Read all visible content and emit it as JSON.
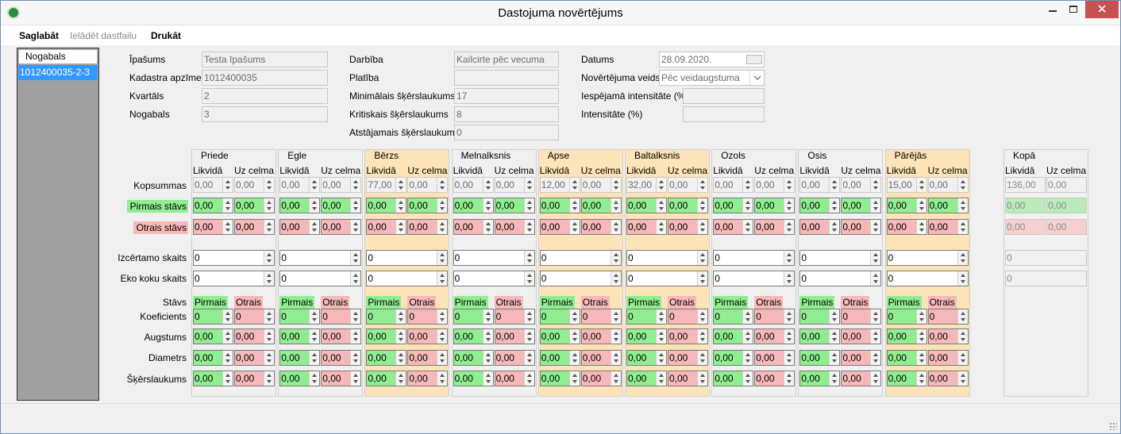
{
  "window": {
    "title": "Dastojuma novērtējums"
  },
  "menu": [
    "Saglabāt",
    "Ielādēt dastfailu",
    "Drukāt"
  ],
  "sidebar": {
    "header": "Nogabals",
    "items": [
      "1012400035-2-3"
    ]
  },
  "form": {
    "columns": [
      [
        {
          "label": "Īpašums",
          "value": "Testa īpašums"
        },
        {
          "label": "Kadastra apzīme",
          "value": "1012400035"
        },
        {
          "label": "Kvartāls",
          "value": "2"
        },
        {
          "label": "Nogabals",
          "value": "3"
        }
      ],
      [
        {
          "label": "Darbība",
          "value": "Kailcirte pēc vecuma"
        },
        {
          "label": "Platība"
        },
        {
          "label": "Minimālais šķērslaukums",
          "value": "17"
        },
        {
          "label": "Kritiskais šķērslaukums",
          "value": "8"
        },
        {
          "label": "Atstājamais šķērslaukums",
          "value": "0"
        }
      ],
      [
        {
          "label": "Datums",
          "value": "28.09.2020."
        },
        {
          "label": "Novērtējuma veids",
          "value": "Pēc veidaugstuma"
        },
        {
          "label": "Iespējamā intensitāte (%)"
        },
        {
          "label": "Intensitāte (%)"
        }
      ]
    ]
  },
  "grid": {
    "col_labels": [
      "Likvidā",
      "Uz celma"
    ],
    "layer_labels": [
      "Pirmais",
      "Otrais"
    ],
    "row_labels": [
      "Kopsummas",
      "Pirmais stāvs",
      "Otrais stāvs",
      "Izcērtamo skaits",
      "Eko koku skaits",
      "Stāvs",
      "Koeficients",
      "Augstums",
      "Diametrs",
      "Šķērslaukums"
    ],
    "highlight_color": "#fde3b8",
    "groups": [
      {
        "name": "Priede",
        "highlight": false,
        "kopsummas": [
          "0,00",
          "0,00"
        ],
        "pirmais": [
          "0,00",
          "0,00"
        ],
        "otrais": [
          "0,00",
          "0,00"
        ],
        "izcertamo": "0",
        "eko": "0",
        "koeficients": [
          "0",
          "0"
        ],
        "augstums": [
          "0,00",
          "0,00"
        ],
        "diametrs": [
          "0,00",
          "0,00"
        ],
        "skerslaukums": [
          "0,00",
          "0,00"
        ]
      },
      {
        "name": "Egle",
        "highlight": false,
        "kopsummas": [
          "0,00",
          "0,00"
        ],
        "pirmais": [
          "0,00",
          "0,00"
        ],
        "otrais": [
          "0,00",
          "0,00"
        ],
        "izcertamo": "0",
        "eko": "0",
        "koeficients": [
          "0",
          "0"
        ],
        "augstums": [
          "0,00",
          "0,00"
        ],
        "diametrs": [
          "0,00",
          "0,00"
        ],
        "skerslaukums": [
          "0,00",
          "0,00"
        ]
      },
      {
        "name": "Bērzs",
        "highlight": true,
        "kopsummas": [
          "77,00",
          "0,00"
        ],
        "pirmais": [
          "0,00",
          "0,00"
        ],
        "otrais": [
          "0,00",
          "0,00"
        ],
        "izcertamo": "0",
        "eko": "0",
        "koeficients": [
          "0",
          "0"
        ],
        "augstums": [
          "0,00",
          "0,00"
        ],
        "diametrs": [
          "0,00",
          "0,00"
        ],
        "skerslaukums": [
          "0,00",
          "0,00"
        ]
      },
      {
        "name": "Melnalksnis",
        "highlight": false,
        "kopsummas": [
          "0,00",
          "0,00"
        ],
        "pirmais": [
          "0,00",
          "0,00"
        ],
        "otrais": [
          "0,00",
          "0,00"
        ],
        "izcertamo": "0",
        "eko": "0",
        "koeficients": [
          "0",
          "0"
        ],
        "augstums": [
          "0,00",
          "0,00"
        ],
        "diametrs": [
          "0,00",
          "0,00"
        ],
        "skerslaukums": [
          "0,00",
          "0,00"
        ]
      },
      {
        "name": "Apse",
        "highlight": true,
        "kopsummas": [
          "12,00",
          "0,00"
        ],
        "pirmais": [
          "0,00",
          "0,00"
        ],
        "otrais": [
          "0,00",
          "0,00"
        ],
        "izcertamo": "0",
        "eko": "0",
        "koeficients": [
          "0",
          "0"
        ],
        "augstums": [
          "0,00",
          "0,00"
        ],
        "diametrs": [
          "0,00",
          "0,00"
        ],
        "skerslaukums": [
          "0,00",
          "0,00"
        ]
      },
      {
        "name": "Baltalksnis",
        "highlight": true,
        "kopsummas": [
          "32,00",
          "0,00"
        ],
        "pirmais": [
          "0,00",
          "0,00"
        ],
        "otrais": [
          "0,00",
          "0,00"
        ],
        "izcertamo": "0",
        "eko": "0",
        "koeficients": [
          "0",
          "0"
        ],
        "augstums": [
          "0,00",
          "0,00"
        ],
        "diametrs": [
          "0,00",
          "0,00"
        ],
        "skerslaukums": [
          "0,00",
          "0,00"
        ]
      },
      {
        "name": "Ozols",
        "highlight": false,
        "kopsummas": [
          "0,00",
          "0,00"
        ],
        "pirmais": [
          "0,00",
          "0,00"
        ],
        "otrais": [
          "0,00",
          "0,00"
        ],
        "izcertamo": "0",
        "eko": "0",
        "koeficients": [
          "0",
          "0"
        ],
        "augstums": [
          "0,00",
          "0,00"
        ],
        "diametrs": [
          "0,00",
          "0,00"
        ],
        "skerslaukums": [
          "0,00",
          "0,00"
        ]
      },
      {
        "name": "Osis",
        "highlight": false,
        "kopsummas": [
          "0,00",
          "0,00"
        ],
        "pirmais": [
          "0,00",
          "0,00"
        ],
        "otrais": [
          "0,00",
          "0,00"
        ],
        "izcertamo": "0",
        "eko": "0",
        "koeficients": [
          "0",
          "0"
        ],
        "augstums": [
          "0,00",
          "0,00"
        ],
        "diametrs": [
          "0,00",
          "0,00"
        ],
        "skerslaukums": [
          "0,00",
          "0,00"
        ]
      },
      {
        "name": "Pārējās",
        "highlight": true,
        "kopsummas": [
          "15,00",
          "0,00"
        ],
        "pirmais": [
          "0,00",
          "0,00"
        ],
        "otrais": [
          "0,00",
          "0,00"
        ],
        "izcertamo": "0",
        "eko": "0",
        "koeficients": [
          "0",
          "0"
        ],
        "augstums": [
          "0,00",
          "0,00"
        ],
        "diametrs": [
          "0,00",
          "0,00"
        ],
        "skerslaukums": [
          "0,00",
          "0,00"
        ]
      },
      {
        "name": "Kopā",
        "highlight": false,
        "enabled": false,
        "kopsummas": [
          "136,00",
          "0,00"
        ],
        "pirmais": [
          "0,00",
          "0,00"
        ],
        "otrais": [
          "0,00",
          "0,00"
        ],
        "izcertamo": "0",
        "eko": "0"
      }
    ]
  }
}
